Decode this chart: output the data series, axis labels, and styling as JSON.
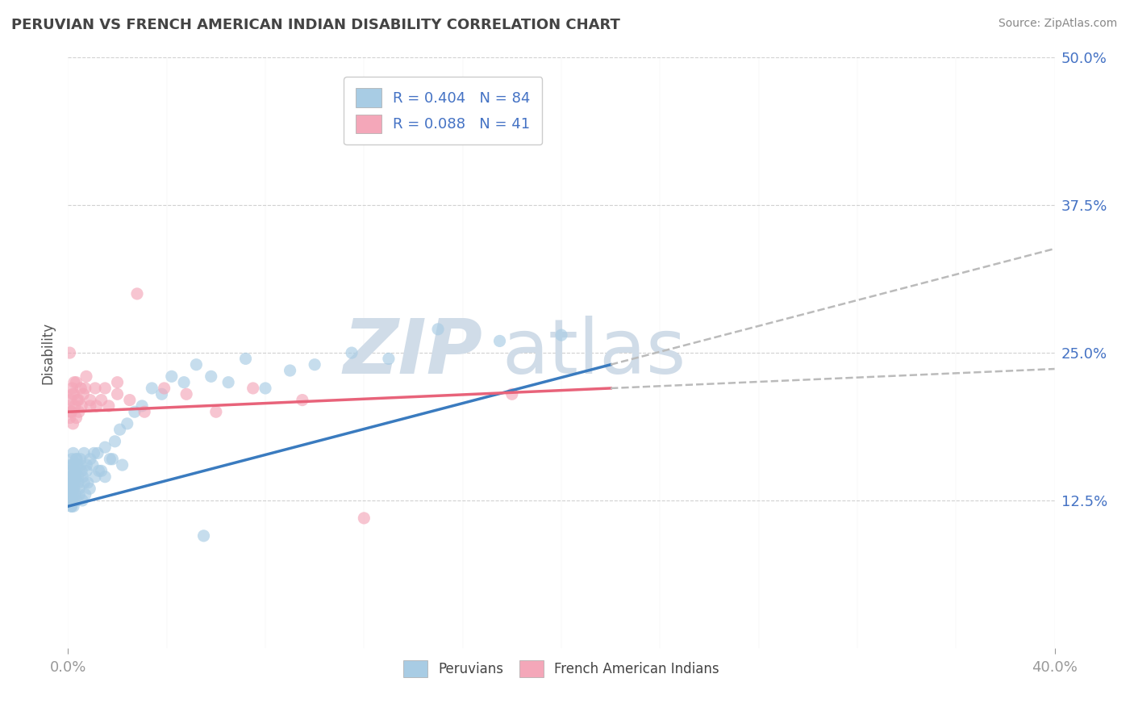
{
  "title": "PERUVIAN VS FRENCH AMERICAN INDIAN DISABILITY CORRELATION CHART",
  "source": "Source: ZipAtlas.com",
  "ylabel": "Disability",
  "xlim": [
    0.0,
    40.0
  ],
  "ylim": [
    0.0,
    50.0
  ],
  "yticks": [
    12.5,
    25.0,
    37.5,
    50.0
  ],
  "yticklabels": [
    "12.5%",
    "25.0%",
    "37.5%",
    "50.0%"
  ],
  "xtick_left": "0.0%",
  "xtick_right": "40.0%",
  "legend_line1": "R = 0.404   N = 84",
  "legend_line2": "R = 0.088   N = 41",
  "color_blue": "#a8cce4",
  "color_pink": "#f4a7b9",
  "color_blue_line": "#3a7bbf",
  "color_pink_line": "#e8637a",
  "color_dashed": "#bbbbbb",
  "background": "#ffffff",
  "tick_color": "#4472c4",
  "title_color": "#444444",
  "source_color": "#888888",
  "watermark_color": "#d0dce8",
  "peru_x": [
    0.05,
    0.07,
    0.08,
    0.09,
    0.1,
    0.11,
    0.12,
    0.13,
    0.14,
    0.15,
    0.16,
    0.17,
    0.18,
    0.19,
    0.2,
    0.21,
    0.22,
    0.23,
    0.24,
    0.25,
    0.27,
    0.29,
    0.31,
    0.33,
    0.35,
    0.38,
    0.41,
    0.45,
    0.5,
    0.55,
    0.6,
    0.65,
    0.7,
    0.75,
    0.8,
    0.9,
    1.0,
    1.1,
    1.2,
    1.35,
    1.5,
    1.7,
    1.9,
    2.1,
    2.4,
    2.7,
    3.0,
    3.4,
    3.8,
    4.2,
    4.7,
    5.2,
    5.8,
    6.5,
    7.2,
    8.0,
    9.0,
    10.0,
    11.5,
    13.0,
    15.0,
    17.5,
    20.0,
    0.06,
    0.1,
    0.14,
    0.18,
    0.22,
    0.26,
    0.3,
    0.35,
    0.4,
    0.46,
    0.52,
    0.58,
    0.65,
    0.75,
    0.88,
    1.05,
    1.25,
    1.5,
    1.8,
    2.2,
    5.5
  ],
  "peru_y": [
    14.0,
    13.5,
    15.0,
    12.5,
    14.5,
    13.0,
    15.5,
    12.0,
    14.0,
    13.5,
    16.0,
    12.5,
    15.0,
    14.0,
    13.0,
    16.5,
    12.0,
    15.5,
    13.5,
    14.5,
    15.0,
    13.0,
    14.5,
    16.0,
    12.5,
    15.5,
    14.0,
    13.5,
    16.0,
    15.0,
    14.5,
    16.5,
    13.0,
    15.0,
    14.0,
    16.0,
    15.5,
    14.5,
    16.5,
    15.0,
    17.0,
    16.0,
    17.5,
    18.5,
    19.0,
    20.0,
    20.5,
    22.0,
    21.5,
    23.0,
    22.5,
    24.0,
    23.0,
    22.5,
    24.5,
    22.0,
    23.5,
    24.0,
    25.0,
    24.5,
    27.0,
    26.0,
    26.5,
    13.0,
    14.5,
    12.0,
    15.5,
    13.5,
    14.0,
    15.0,
    16.0,
    14.5,
    13.0,
    15.5,
    12.5,
    14.0,
    15.5,
    13.5,
    16.5,
    15.0,
    14.5,
    16.0,
    15.5,
    9.5
  ],
  "french_x": [
    0.05,
    0.08,
    0.11,
    0.14,
    0.17,
    0.2,
    0.24,
    0.28,
    0.33,
    0.38,
    0.44,
    0.52,
    0.62,
    0.74,
    0.9,
    1.1,
    1.35,
    1.65,
    2.0,
    2.5,
    3.1,
    3.9,
    4.8,
    6.0,
    7.5,
    9.5,
    12.0,
    0.07,
    0.12,
    0.18,
    0.25,
    0.33,
    0.43,
    0.55,
    0.7,
    0.9,
    1.15,
    1.5,
    2.0,
    2.8,
    18.0
  ],
  "french_y": [
    20.5,
    19.5,
    21.0,
    20.0,
    22.0,
    19.0,
    21.5,
    20.5,
    22.5,
    21.0,
    20.0,
    22.0,
    21.5,
    23.0,
    20.5,
    22.0,
    21.0,
    20.5,
    22.5,
    21.0,
    20.0,
    22.0,
    21.5,
    20.0,
    22.0,
    21.0,
    11.0,
    25.0,
    20.0,
    21.5,
    22.5,
    19.5,
    21.0,
    20.5,
    22.0,
    21.0,
    20.5,
    22.0,
    21.5,
    30.0,
    21.5
  ],
  "blue_line_x0": 0.0,
  "blue_line_y0": 12.0,
  "blue_line_x1": 22.0,
  "blue_line_y1": 24.0,
  "pink_line_x0": 0.0,
  "pink_line_y0": 20.0,
  "pink_line_x1": 22.0,
  "pink_line_y1": 22.0,
  "dash_x0": 22.0,
  "dash_x1": 40.0
}
